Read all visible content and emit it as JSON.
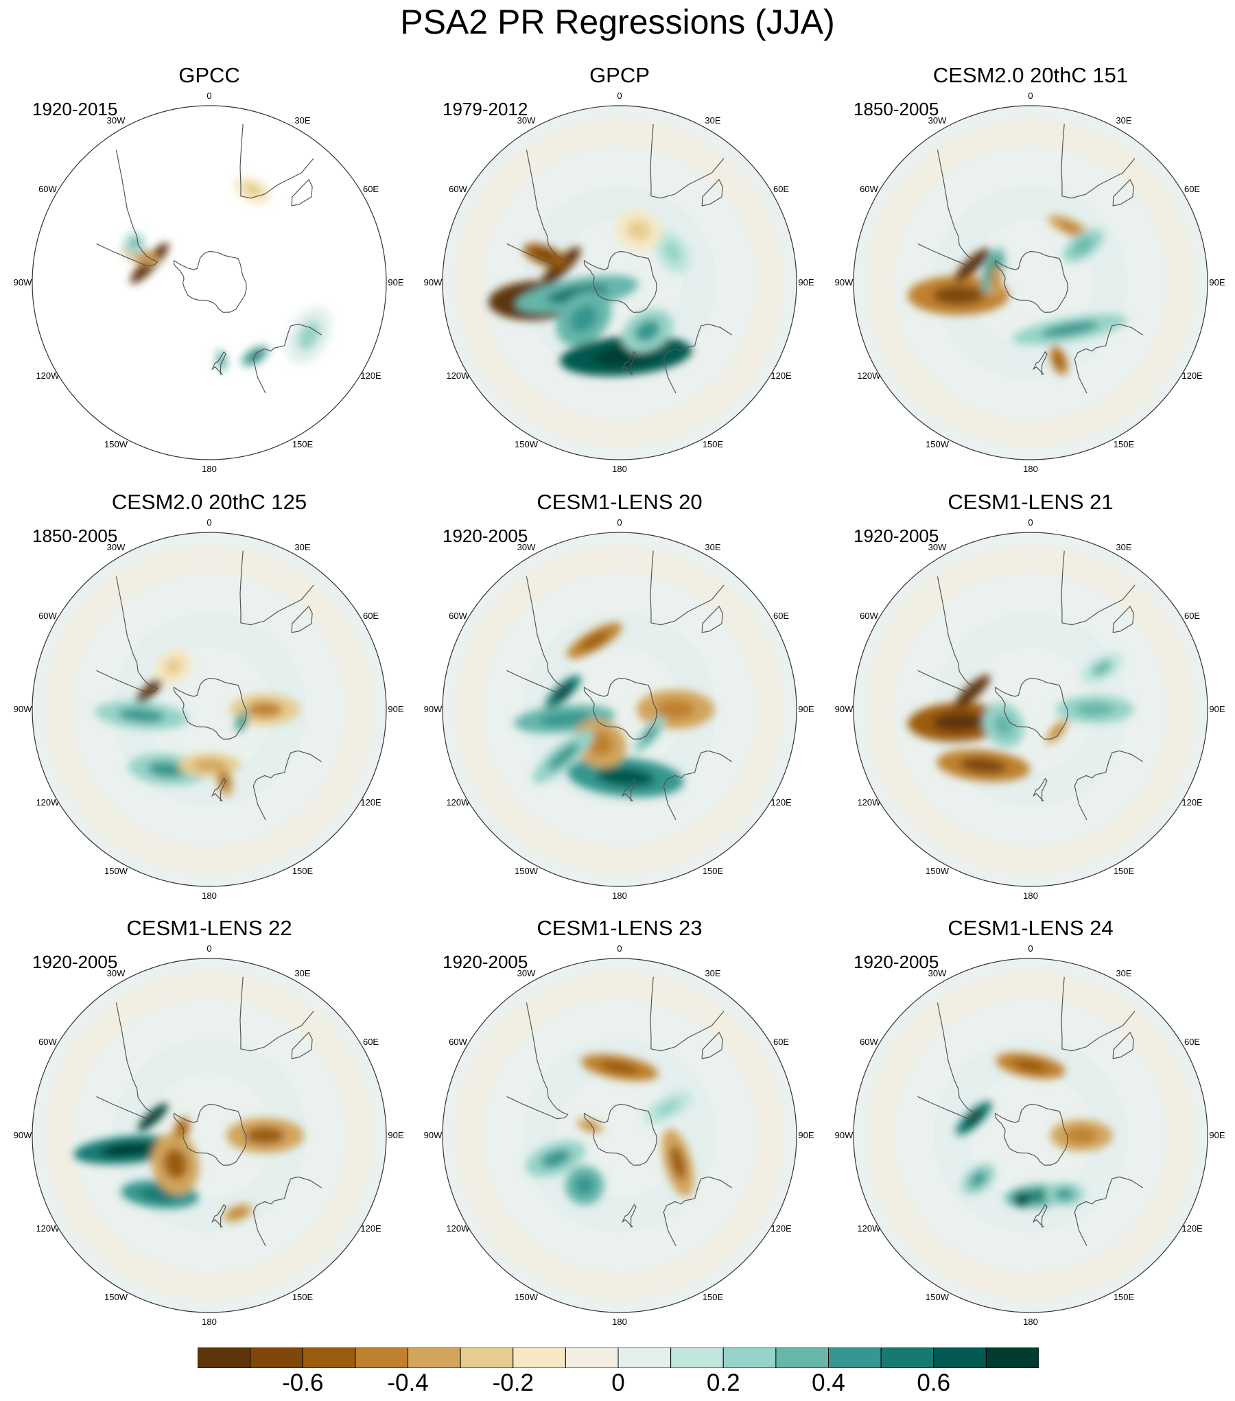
{
  "chart_data": {
    "type": "polar-contour-map",
    "title": "PSA2 PR Regressions (JJA)",
    "projection": "South Polar Stereographic",
    "longitude_labels": [
      "0",
      "30E",
      "60E",
      "90E",
      "120E",
      "150E",
      "180",
      "150W",
      "120W",
      "90W",
      "60W",
      "30W"
    ],
    "panels": [
      {
        "title": "GPCC",
        "period": "1920-2015",
        "land_only": true,
        "anomalies": [
          {
            "lon": -72,
            "lat": -51,
            "sx": 0.07,
            "sy": 0.018,
            "rot": 25,
            "value": -0.7
          },
          {
            "lon": -68,
            "lat": -44,
            "sx": 0.02,
            "sy": 0.05,
            "rot": 0,
            "value": -0.3
          },
          {
            "lon": -62,
            "lat": -39,
            "sx": 0.03,
            "sy": 0.03,
            "rot": 0,
            "value": 0.2
          },
          {
            "lon": 148,
            "lat": -38,
            "sx": 0.04,
            "sy": 0.02,
            "rot": 0,
            "value": 0.4
          },
          {
            "lon": 171,
            "lat": -42,
            "sx": 0.015,
            "sy": 0.03,
            "rot": 0,
            "value": 0.3
          },
          {
            "lon": 118,
            "lat": -25,
            "sx": 0.08,
            "sy": 0.05,
            "rot": 0,
            "value": 0.1
          },
          {
            "lon": 25,
            "lat": -30,
            "sx": 0.05,
            "sy": 0.03,
            "rot": 0,
            "value": -0.1
          }
        ]
      },
      {
        "title": "GPCP",
        "period": "1979-2012",
        "land_only": false,
        "anomalies": [
          {
            "lon": -102,
            "lat": -38,
            "sx": 0.05,
            "sy": 0.12,
            "rot": 10,
            "value": -0.75
          },
          {
            "lon": -75,
            "lat": -52,
            "sx": 0.07,
            "sy": 0.02,
            "rot": 30,
            "value": -0.7
          },
          {
            "lon": -70,
            "lat": -42,
            "sx": 0.025,
            "sy": 0.06,
            "rot": 0,
            "value": -0.5
          },
          {
            "lon": -105,
            "lat": -62,
            "sx": 0.04,
            "sy": 0.16,
            "rot": 5,
            "value": 0.4
          },
          {
            "lon": -135,
            "lat": -58,
            "sx": 0.06,
            "sy": 0.08,
            "rot": 0,
            "value": 0.35
          },
          {
            "lon": 175,
            "lat": -45,
            "sx": 0.17,
            "sy": 0.05,
            "rot": 0,
            "value": 0.65
          },
          {
            "lon": 150,
            "lat": -55,
            "sx": 0.07,
            "sy": 0.05,
            "rot": 0,
            "value": 0.3
          },
          {
            "lon": 60,
            "lat": -52,
            "sx": 0.06,
            "sy": 0.04,
            "rot": 0,
            "value": 0.15
          },
          {
            "lon": 20,
            "lat": -55,
            "sx": 0.06,
            "sy": 0.05,
            "rot": 0,
            "value": -0.1
          }
        ]
      },
      {
        "title": "CESM2.0 20thC 151",
        "period": "1850-2005",
        "land_only": false,
        "anomalies": [
          {
            "lon": -100,
            "lat": -45,
            "sx": 0.05,
            "sy": 0.13,
            "rot": 10,
            "value": -0.45
          },
          {
            "lon": -73,
            "lat": -52,
            "sx": 0.06,
            "sy": 0.018,
            "rot": 30,
            "value": -0.7
          },
          {
            "lon": -72,
            "lat": -65,
            "sx": 0.06,
            "sy": 0.025,
            "rot": 0,
            "value": 0.4
          },
          {
            "lon": 35,
            "lat": -48,
            "sx": 0.06,
            "sy": 0.02,
            "rot": -10,
            "value": -0.3
          },
          {
            "lon": 55,
            "lat": -50,
            "sx": 0.03,
            "sy": 0.06,
            "rot": 0,
            "value": 0.25
          },
          {
            "lon": 140,
            "lat": -52,
            "sx": 0.15,
            "sy": 0.03,
            "rot": 30,
            "value": 0.3
          },
          {
            "lon": 160,
            "lat": -40,
            "sx": 0.02,
            "sy": 0.04,
            "rot": 0,
            "value": -0.4
          },
          {
            "lon": -88,
            "lat": -68,
            "sx": 0.04,
            "sy": 0.015,
            "rot": 0,
            "value": -0.3
          }
        ]
      },
      {
        "title": "CESM2.0 20thC 125",
        "period": "1850-2005",
        "land_only": false,
        "anomalies": [
          {
            "lon": -73,
            "lat": -51,
            "sx": 0.05,
            "sy": 0.015,
            "rot": 30,
            "value": -0.75
          },
          {
            "lon": -95,
            "lat": -48,
            "sx": 0.035,
            "sy": 0.12,
            "rot": 10,
            "value": 0.3
          },
          {
            "lon": -145,
            "lat": -45,
            "sx": 0.1,
            "sy": 0.04,
            "rot": -30,
            "value": 0.3
          },
          {
            "lon": 90,
            "lat": -55,
            "sx": 0.04,
            "sy": 0.09,
            "rot": 0,
            "value": -0.25
          },
          {
            "lon": 180,
            "lat": -55,
            "sx": 0.08,
            "sy": 0.03,
            "rot": 0,
            "value": -0.2
          },
          {
            "lon": 168,
            "lat": -45,
            "sx": 0.02,
            "sy": 0.04,
            "rot": 0,
            "value": -0.35
          },
          {
            "lon": 110,
            "lat": -68,
            "sx": 0.03,
            "sy": 0.015,
            "rot": 0,
            "value": 0.4
          },
          {
            "lon": -40,
            "lat": -55,
            "sx": 0.05,
            "sy": 0.04,
            "rot": 0,
            "value": -0.1
          }
        ]
      },
      {
        "title": "CESM1-LENS 20",
        "period": "1920-2005",
        "land_only": false,
        "anomalies": [
          {
            "lon": -20,
            "lat": -45,
            "sx": 0.08,
            "sy": 0.025,
            "rot": -10,
            "value": -0.4
          },
          {
            "lon": -73,
            "lat": -53,
            "sx": 0.06,
            "sy": 0.02,
            "rot": 30,
            "value": 0.55
          },
          {
            "lon": -100,
            "lat": -55,
            "sx": 0.035,
            "sy": 0.13,
            "rot": 5,
            "value": 0.35
          },
          {
            "lon": 175,
            "lat": -48,
            "sx": 0.15,
            "sy": 0.05,
            "rot": 10,
            "value": 0.5
          },
          {
            "lon": 90,
            "lat": -55,
            "sx": 0.05,
            "sy": 0.1,
            "rot": 0,
            "value": -0.3
          },
          {
            "lon": -150,
            "lat": -65,
            "sx": 0.07,
            "sy": 0.06,
            "rot": 0,
            "value": -0.3
          },
          {
            "lon": 130,
            "lat": -65,
            "sx": 0.06,
            "sy": 0.02,
            "rot": 0,
            "value": 0.3
          },
          {
            "lon": -130,
            "lat": -45,
            "sx": 0.03,
            "sy": 0.1,
            "rot": 0,
            "value": 0.3
          }
        ]
      },
      {
        "title": "CESM1-LENS 21",
        "period": "1920-2005",
        "land_only": false,
        "anomalies": [
          {
            "lon": -100,
            "lat": -45,
            "sx": 0.05,
            "sy": 0.13,
            "rot": 8,
            "value": -0.55
          },
          {
            "lon": -73,
            "lat": -52,
            "sx": 0.06,
            "sy": 0.018,
            "rot": 30,
            "value": -0.7
          },
          {
            "lon": -140,
            "lat": -45,
            "sx": 0.12,
            "sy": 0.04,
            "rot": -35,
            "value": -0.45
          },
          {
            "lon": 90,
            "lat": -50,
            "sx": 0.035,
            "sy": 0.1,
            "rot": 0,
            "value": 0.25
          },
          {
            "lon": -120,
            "lat": -70,
            "sx": 0.06,
            "sy": 0.05,
            "rot": 0,
            "value": 0.25
          },
          {
            "lon": 60,
            "lat": -40,
            "sx": 0.03,
            "sy": 0.06,
            "rot": 0,
            "value": 0.2
          },
          {
            "lon": 130,
            "lat": -68,
            "sx": 0.04,
            "sy": 0.015,
            "rot": 0,
            "value": -0.3
          }
        ]
      },
      {
        "title": "CESM1-LENS 22",
        "period": "1920-2005",
        "land_only": false,
        "anomalies": [
          {
            "lon": -100,
            "lat": -40,
            "sx": 0.035,
            "sy": 0.14,
            "rot": 5,
            "value": 0.55
          },
          {
            "lon": -72,
            "lat": -53,
            "sx": 0.05,
            "sy": 0.015,
            "rot": 30,
            "value": 0.75
          },
          {
            "lon": -140,
            "lat": -43,
            "sx": 0.1,
            "sy": 0.035,
            "rot": -35,
            "value": 0.45
          },
          {
            "lon": -130,
            "lat": -62,
            "sx": 0.08,
            "sy": 0.06,
            "rot": 30,
            "value": -0.35
          },
          {
            "lon": 90,
            "lat": -55,
            "sx": 0.045,
            "sy": 0.1,
            "rot": 0,
            "value": -0.35
          },
          {
            "lon": 160,
            "lat": -40,
            "sx": 0.04,
            "sy": 0.02,
            "rot": 0,
            "value": -0.3
          },
          {
            "lon": -75,
            "lat": -72,
            "sx": 0.03,
            "sy": 0.02,
            "rot": 0,
            "value": -0.4
          }
        ]
      },
      {
        "title": "CESM1-LENS 23",
        "period": "1920-2005",
        "land_only": false,
        "anomalies": [
          {
            "lon": 0,
            "lat": -48,
            "sx": 0.1,
            "sy": 0.03,
            "rot": 10,
            "value": -0.4
          },
          {
            "lon": 115,
            "lat": -50,
            "sx": 0.09,
            "sy": 0.035,
            "rot": -40,
            "value": -0.35
          },
          {
            "lon": -110,
            "lat": -48,
            "sx": 0.04,
            "sy": 0.08,
            "rot": 0,
            "value": 0.3
          },
          {
            "lon": -145,
            "lat": -52,
            "sx": 0.05,
            "sy": 0.05,
            "rot": 0,
            "value": 0.35
          },
          {
            "lon": -72,
            "lat": -70,
            "sx": 0.015,
            "sy": 0.035,
            "rot": 0,
            "value": -0.3
          },
          {
            "lon": 60,
            "lat": -55,
            "sx": 0.03,
            "sy": 0.07,
            "rot": 0,
            "value": 0.15
          }
        ]
      },
      {
        "title": "CESM1-LENS 24",
        "period": "1920-2005",
        "land_only": false,
        "anomalies": [
          {
            "lon": 0,
            "lat": -47,
            "sx": 0.09,
            "sy": 0.03,
            "rot": 10,
            "value": -0.4
          },
          {
            "lon": -73,
            "lat": -53,
            "sx": 0.06,
            "sy": 0.02,
            "rot": 30,
            "value": 0.6
          },
          {
            "lon": 175,
            "lat": -52,
            "sx": 0.08,
            "sy": 0.03,
            "rot": 0,
            "value": 0.4
          },
          {
            "lon": -172,
            "lat": -50,
            "sx": 0.02,
            "sy": 0.02,
            "rot": 0,
            "value": 0.7
          },
          {
            "lon": 90,
            "lat": -58,
            "sx": 0.04,
            "sy": 0.08,
            "rot": 0,
            "value": -0.3
          },
          {
            "lon": 150,
            "lat": -48,
            "sx": 0.05,
            "sy": 0.03,
            "rot": 30,
            "value": 0.3
          },
          {
            "lon": -130,
            "lat": -48,
            "sx": 0.03,
            "sy": 0.05,
            "rot": 0,
            "value": 0.3
          }
        ]
      }
    ],
    "colorbar": {
      "levels": [
        -0.7,
        -0.6,
        -0.5,
        -0.4,
        -0.3,
        -0.2,
        -0.1,
        0,
        0.1,
        0.2,
        0.3,
        0.4,
        0.5,
        0.6,
        0.7
      ],
      "tick_labels": [
        "-0.6",
        "-0.4",
        "-0.2",
        "0",
        "0.2",
        "0.4",
        "0.6"
      ],
      "tick_values": [
        -0.6,
        -0.4,
        -0.2,
        0,
        0.2,
        0.4,
        0.6
      ],
      "colors": [
        "#5e3508",
        "#7f4809",
        "#9c5c10",
        "#bf812d",
        "#d2a55c",
        "#e6cc8f",
        "#f6e8c3",
        "#f3eee1",
        "#e2efed",
        "#c0e6de",
        "#96d3c8",
        "#66b6aa",
        "#35978f",
        "#177a71",
        "#015a50",
        "#003c30"
      ]
    }
  }
}
